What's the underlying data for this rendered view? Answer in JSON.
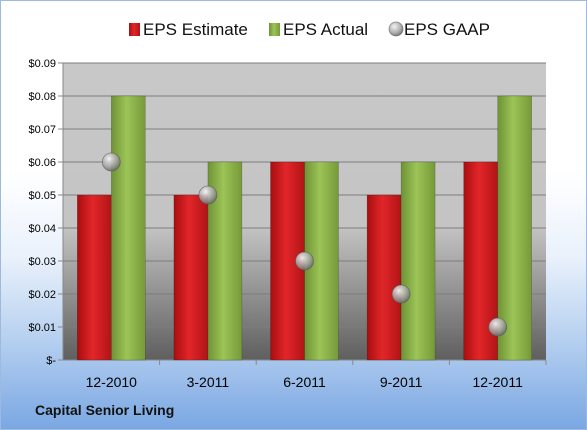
{
  "chart_data": {
    "type": "bar",
    "categories": [
      "12-2010",
      "3-2011",
      "6-2011",
      "9-2011",
      "12-2011"
    ],
    "series": [
      {
        "name": "EPS Estimate",
        "kind": "bar",
        "color": "#d7191c",
        "values": [
          0.05,
          0.05,
          0.06,
          0.05,
          0.06
        ]
      },
      {
        "name": "EPS Actual",
        "kind": "bar",
        "color": "#8db545",
        "values": [
          0.08,
          0.06,
          0.06,
          0.06,
          0.08
        ]
      },
      {
        "name": "EPS GAAP",
        "kind": "scatter",
        "color": "#a0a0a0",
        "values": [
          0.06,
          0.05,
          0.03,
          0.02,
          0.01
        ]
      }
    ],
    "ylim": [
      0,
      0.09
    ],
    "y_ticks": [
      0,
      0.01,
      0.02,
      0.03,
      0.04,
      0.05,
      0.06,
      0.07,
      0.08,
      0.09
    ],
    "y_tick_labels": [
      "$-",
      "$0.01",
      "$0.02",
      "$0.03",
      "$0.04",
      "$0.05",
      "$0.06",
      "$0.07",
      "$0.08",
      "$0.09"
    ],
    "grid": true,
    "legend_position": "top"
  },
  "footer": {
    "company_name": "Capital Senior Living"
  }
}
